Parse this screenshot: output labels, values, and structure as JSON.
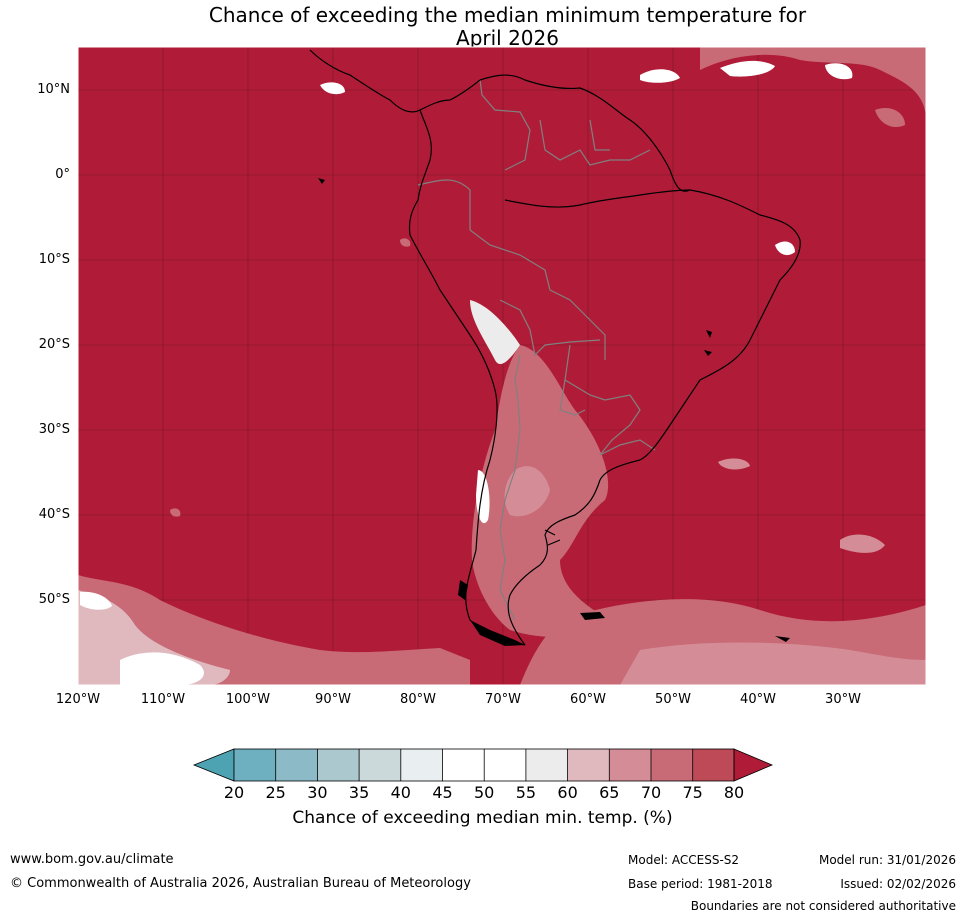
{
  "title_line1": "Chance of exceeding the median minimum temperature for",
  "title_line2": "April 2026",
  "lat_labels": [
    "10°N",
    "0°",
    "10°S",
    "20°S",
    "30°S",
    "40°S",
    "50°S"
  ],
  "lon_labels": [
    "120°W",
    "110°W",
    "100°W",
    "90°W",
    "80°W",
    "70°W",
    "60°W",
    "50°W",
    "40°W",
    "30°W"
  ],
  "colorbar": {
    "ticks": [
      "20",
      "25",
      "30",
      "35",
      "40",
      "45",
      "50",
      "55",
      "60",
      "65",
      "70",
      "75",
      "80"
    ],
    "colors": [
      "#4ea3b2",
      "#6eb0c0",
      "#8cbac7",
      "#abc8ce",
      "#cbd9da",
      "#e9eef0",
      "#ffffff",
      "#ffffff",
      "#ececec",
      "#e0b9bf",
      "#d48d97",
      "#c86b77",
      "#be4a58",
      "#b01c37"
    ],
    "label": "Chance of exceeding median min. temp. (%)"
  },
  "map": {
    "background_color": "#b01c37",
    "coast_color": "#000000",
    "border_color": "#808080"
  },
  "footer": {
    "website": "www.bom.gov.au/climate",
    "copyright": "© Commonwealth of Australia 2026, Australian Bureau of Meteorology",
    "model": "Model: ACCESS-S2",
    "base_period": "Base period: 1981-2018",
    "model_run": "Model run: 31/01/2026",
    "issued": "Issued: 02/02/2026",
    "disclaimer": "Boundaries are not considered authoritative"
  }
}
